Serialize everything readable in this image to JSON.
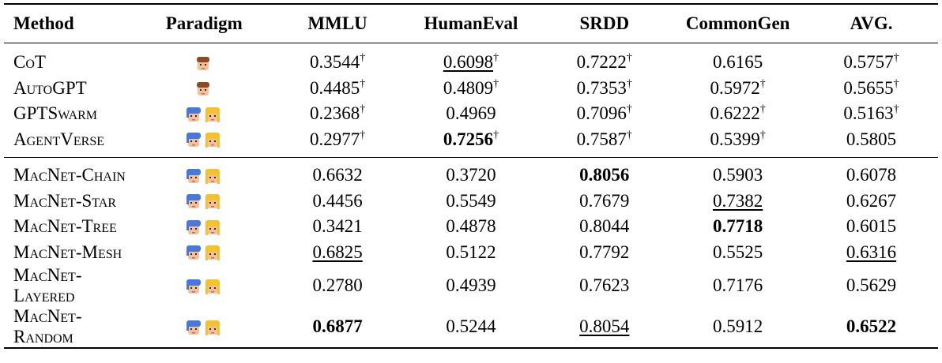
{
  "table": {
    "header": [
      "Method",
      "Paradigm",
      "MMLU",
      "HumanEval",
      "SRDD",
      "CommonGen",
      "AVG."
    ],
    "rows": [
      {
        "method": "CoT",
        "scores": [
          {
            "value": "0.3544",
            "note": "†"
          },
          {
            "value": "0.6098",
            "note": "†"
          },
          {
            "value": "0.7222",
            "note": "†"
          },
          "0.6165",
          {
            "value": "0.5757",
            "note": "†"
          }
        ]
      },
      {
        "method": "AutoGPT",
        "scores": [
          {
            "value": "0.4485",
            "note": "†"
          },
          {
            "value": "0.4809",
            "note": "†"
          },
          {
            "value": "0.7353",
            "note": "†"
          },
          {
            "value": "0.5972",
            "note": "†"
          },
          {
            "value": "0.5655",
            "note": "†"
          }
        ]
      },
      {
        "method": "GPTSwarm",
        "scores": [
          {
            "value": "0.2368",
            "note": "†"
          },
          "0.4969",
          {
            "value": "0.7096",
            "note": "†"
          },
          {
            "value": "0.6222",
            "note": "†"
          },
          {
            "value": "0.5163",
            "note": "†"
          }
        ]
      },
      {
        "method": "AgentVerse",
        "scores": [
          {
            "value": "0.2977",
            "note": "†"
          },
          {
            "value": "0.7256",
            "note": "†"
          },
          {
            "value": "0.7587",
            "note": "†"
          },
          {
            "value": "0.5399",
            "note": "†"
          },
          "0.5805"
        ]
      },
      {
        "method": "MacNet-Chain",
        "scores": [
          "0.6632",
          "0.3720",
          "0.8056",
          "0.5903",
          "0.6078"
        ]
      },
      {
        "method": "MacNet-Star",
        "scores": [
          "0.4456",
          "0.5549",
          "0.7679",
          "0.7382",
          "0.6267"
        ]
      },
      {
        "method": "MacNet-Tree",
        "scores": [
          "0.3421",
          "0.4878",
          "0.8044",
          "0.7718",
          "0.6015"
        ]
      },
      {
        "method": "MacNet-Mesh",
        "scores": [
          "0.6825",
          "0.5122",
          "0.7792",
          "0.5525",
          "0.6316"
        ]
      },
      {
        "method": "MacNet-Layered",
        "scores": [
          "0.2780",
          "0.4939",
          "0.7623",
          "0.7176",
          "0.5629"
        ]
      },
      {
        "method": "MacNet-Random",
        "scores": [
          "0.6877",
          "0.5244",
          "0.8054",
          "0.5912",
          "0.6522"
        ]
      }
    ]
  }
}
